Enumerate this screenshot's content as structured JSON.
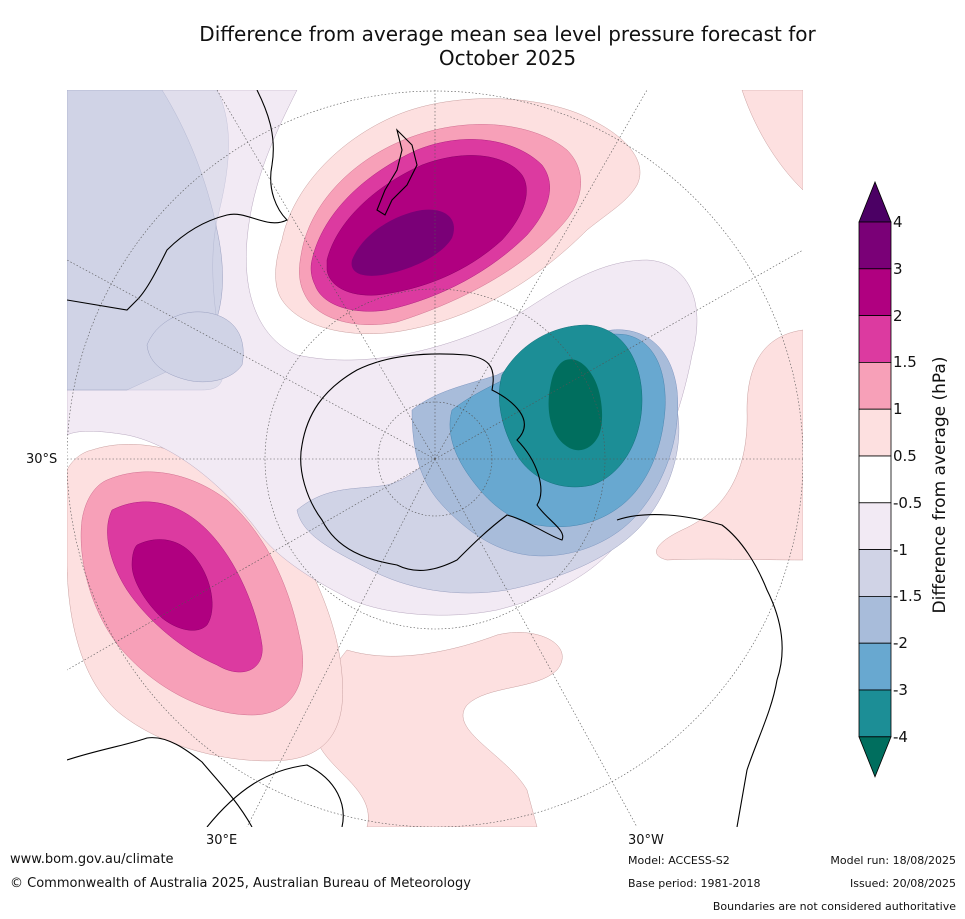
{
  "title_line1": "Difference from average mean sea level pressure forecast for",
  "title_line2": "October 2025",
  "map_labels": {
    "lat_30s": "30°S",
    "lon_30e": "30°E",
    "lon_30w": "30°W"
  },
  "colorbar": {
    "label": "Difference from average (hPa)",
    "ticks": [
      "4",
      "3",
      "2",
      "1.5",
      "1",
      "0.5",
      "-0.5",
      "-1",
      "-1.5",
      "-2",
      "-3",
      "-4"
    ],
    "colors": [
      "#4b0064",
      "#7a0077",
      "#b00080",
      "#dc3aa0",
      "#f7a0b8",
      "#fde0e0",
      "#ffffff",
      "#f2eaf4",
      "#d0d3e6",
      "#a8bcda",
      "#68a8d0",
      "#1c8e96",
      "#006e5e"
    ]
  },
  "footer": {
    "website": "www.bom.gov.au/climate",
    "copyright": "© Commonwealth of Australia 2025, Australian Bureau of Meteorology",
    "model": "Model: ACCESS-S2",
    "base_period": "Base period: 1981-2018",
    "model_run": "Model run: 18/08/2025",
    "issued": "Issued: 20/08/2025",
    "disclaimer": "Boundaries are not considered authoritative"
  }
}
